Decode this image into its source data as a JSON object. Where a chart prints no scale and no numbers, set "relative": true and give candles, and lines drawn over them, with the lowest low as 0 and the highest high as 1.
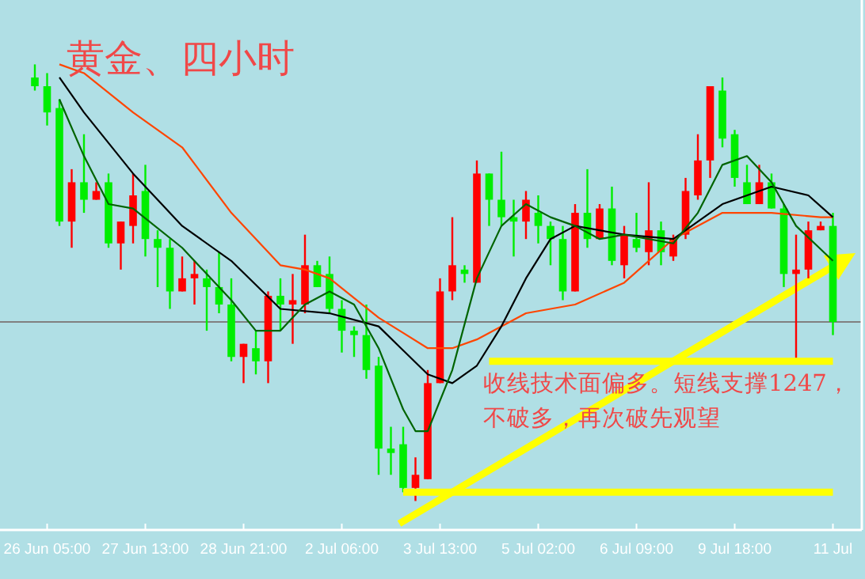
{
  "chart_data": {
    "type": "candlestick",
    "title": "黄金、四小时",
    "relative": true,
    "categories": [
      null,
      "26 Jun 05:00",
      null,
      null,
      null,
      null,
      null,
      null,
      null,
      "27 Jun 13:00",
      null,
      null,
      null,
      null,
      null,
      null,
      null,
      "28 Jun 21:00",
      null,
      null,
      null,
      null,
      null,
      null,
      null,
      "2 Jul 06:00",
      null,
      null,
      null,
      null,
      null,
      null,
      null,
      "3 Jul 13:00",
      null,
      null,
      null,
      null,
      null,
      null,
      null,
      "5 Jul 02:00",
      null,
      null,
      null,
      null,
      null,
      null,
      null,
      "6 Jul 09:00",
      null,
      null,
      null,
      null,
      null,
      null,
      null,
      "9 Jul 18:00",
      null,
      null,
      null,
      null,
      null,
      null,
      null,
      "11 Jul"
    ],
    "ohlc": [
      [
        0.97,
        1.0,
        0.94,
        0.95
      ],
      [
        0.95,
        0.98,
        0.86,
        0.89
      ],
      [
        0.9,
        0.92,
        0.63,
        0.64
      ],
      [
        0.64,
        0.76,
        0.58,
        0.73
      ],
      [
        0.73,
        0.84,
        0.66,
        0.69
      ],
      [
        0.69,
        0.73,
        0.69,
        0.71
      ],
      [
        0.73,
        0.75,
        0.58,
        0.59
      ],
      [
        0.59,
        0.64,
        0.53,
        0.64
      ],
      [
        0.63,
        0.75,
        0.59,
        0.7
      ],
      [
        0.71,
        0.77,
        0.56,
        0.6
      ],
      [
        0.6,
        0.62,
        0.49,
        0.58
      ],
      [
        0.58,
        0.6,
        0.44,
        0.48
      ],
      [
        0.48,
        0.56,
        0.48,
        0.51
      ],
      [
        0.51,
        0.55,
        0.45,
        0.52
      ],
      [
        0.51,
        0.53,
        0.39,
        0.49
      ],
      [
        0.49,
        0.57,
        0.43,
        0.45
      ],
      [
        0.45,
        0.51,
        0.32,
        0.33
      ],
      [
        0.33,
        0.36,
        0.27,
        0.36
      ],
      [
        0.35,
        0.39,
        0.29,
        0.32
      ],
      [
        0.32,
        0.48,
        0.27,
        0.47
      ],
      [
        0.47,
        0.51,
        0.39,
        0.45
      ],
      [
        0.45,
        0.52,
        0.36,
        0.46
      ],
      [
        0.45,
        0.61,
        0.43,
        0.54
      ],
      [
        0.54,
        0.55,
        0.49,
        0.49
      ],
      [
        0.52,
        0.56,
        0.43,
        0.44
      ],
      [
        0.44,
        0.46,
        0.34,
        0.39
      ],
      [
        0.39,
        0.4,
        0.33,
        0.38
      ],
      [
        0.38,
        0.45,
        0.28,
        0.3
      ],
      [
        0.31,
        0.33,
        0.06,
        0.12
      ],
      [
        0.12,
        0.17,
        0.06,
        0.11
      ],
      [
        0.13,
        0.17,
        0.02,
        0.03
      ],
      [
        0.03,
        0.1,
        0.0,
        0.06
      ],
      [
        0.05,
        0.3,
        0.05,
        0.27
      ],
      [
        0.27,
        0.51,
        0.27,
        0.48
      ],
      [
        0.48,
        0.65,
        0.46,
        0.54
      ],
      [
        0.53,
        0.54,
        0.5,
        0.52
      ],
      [
        0.5,
        0.78,
        0.5,
        0.75
      ],
      [
        0.75,
        0.75,
        0.63,
        0.69
      ],
      [
        0.69,
        0.8,
        0.63,
        0.65
      ],
      [
        0.65,
        0.69,
        0.56,
        0.64
      ],
      [
        0.64,
        0.71,
        0.6,
        0.69
      ],
      [
        0.66,
        0.7,
        0.59,
        0.63
      ],
      [
        0.63,
        0.64,
        0.54,
        0.6
      ],
      [
        0.6,
        0.63,
        0.46,
        0.48
      ],
      [
        0.48,
        0.68,
        0.48,
        0.66
      ],
      [
        0.66,
        0.76,
        0.58,
        0.6
      ],
      [
        0.6,
        0.68,
        0.6,
        0.67
      ],
      [
        0.67,
        0.72,
        0.54,
        0.55
      ],
      [
        0.54,
        0.63,
        0.51,
        0.61
      ],
      [
        0.6,
        0.66,
        0.57,
        0.58
      ],
      [
        0.57,
        0.73,
        0.54,
        0.62
      ],
      [
        0.62,
        0.64,
        0.54,
        0.57
      ],
      [
        0.56,
        0.61,
        0.55,
        0.6
      ],
      [
        0.61,
        0.74,
        0.6,
        0.71
      ],
      [
        0.7,
        0.84,
        0.69,
        0.78
      ],
      [
        0.78,
        0.95,
        0.74,
        0.95
      ],
      [
        0.94,
        0.97,
        0.81,
        0.83
      ],
      [
        0.84,
        0.85,
        0.72,
        0.74
      ],
      [
        0.73,
        0.77,
        0.68,
        0.68
      ],
      [
        0.68,
        0.77,
        0.68,
        0.73
      ],
      [
        0.73,
        0.75,
        0.67,
        0.67
      ],
      [
        0.67,
        0.68,
        0.49,
        0.52
      ],
      [
        0.52,
        0.61,
        0.32,
        0.53
      ],
      [
        0.53,
        0.64,
        0.51,
        0.62
      ],
      [
        0.62,
        0.64,
        0.62,
        0.63
      ],
      [
        0.63,
        0.66,
        0.38,
        0.41
      ]
    ],
    "colors": [
      "#00ee00",
      "#00ee00",
      "#00ee00",
      "#ff0000",
      "#00ee00",
      "#ff0000",
      "#00ee00",
      "#ff0000",
      "#ff0000",
      "#00ee00",
      "#00ee00",
      "#00ee00",
      "#ff0000",
      "#ff0000",
      "#00ee00",
      "#00ee00",
      "#00ee00",
      "#ff0000",
      "#00ee00",
      "#ff0000",
      "#00ee00",
      "#ff0000",
      "#ff0000",
      "#00ee00",
      "#00ee00",
      "#00ee00",
      "#00ee00",
      "#00ee00",
      "#00ee00",
      "#00ee00",
      "#00ee00",
      "#ff0000",
      "#ff0000",
      "#ff0000",
      "#ff0000",
      "#00ee00",
      "#ff0000",
      "#00ee00",
      "#00ee00",
      "#00ee00",
      "#ff0000",
      "#00ee00",
      "#00ee00",
      "#00ee00",
      "#ff0000",
      "#00ee00",
      "#ff0000",
      "#00ee00",
      "#ff0000",
      "#00ee00",
      "#ff0000",
      "#00ee00",
      "#ff0000",
      "#ff0000",
      "#ff0000",
      "#ff0000",
      "#00ee00",
      "#00ee00",
      "#00ee00",
      "#ff0000",
      "#00ee00",
      "#00ee00",
      "#ff0000",
      "#ff0000",
      "#ff0000",
      "#00ee00"
    ],
    "series": [
      {
        "type": "line",
        "color": "#ff4500",
        "values": [
          null,
          null,
          1.0,
          null,
          0.98,
          null,
          null,
          null,
          0.89,
          null,
          null,
          null,
          0.81,
          null,
          null,
          null,
          0.66,
          null,
          null,
          null,
          0.54,
          null,
          0.53,
          null,
          0.51,
          null,
          null,
          null,
          0.42,
          null,
          null,
          null,
          0.35,
          null,
          0.35,
          null,
          0.37,
          null,
          null,
          null,
          0.43,
          null,
          null,
          null,
          0.45,
          null,
          null,
          null,
          0.5,
          null,
          null,
          null,
          0.6,
          null,
          null,
          null,
          0.66,
          null,
          null,
          null,
          0.66,
          null,
          null,
          null,
          0.65,
          0.65
        ]
      },
      {
        "type": "line",
        "color": "#000000",
        "values": [
          null,
          null,
          0.97,
          null,
          0.89,
          null,
          null,
          null,
          0.75,
          null,
          null,
          null,
          0.63,
          null,
          null,
          null,
          0.55,
          null,
          null,
          null,
          0.44,
          null,
          null,
          null,
          0.43,
          null,
          null,
          null,
          0.4,
          null,
          null,
          null,
          0.29,
          null,
          0.27,
          null,
          0.31,
          null,
          0.4,
          null,
          0.51,
          null,
          0.6,
          null,
          0.63,
          null,
          null,
          null,
          0.61,
          null,
          null,
          null,
          0.6,
          null,
          0.64,
          null,
          0.68,
          null,
          null,
          null,
          0.72,
          null,
          null,
          0.7,
          null,
          0.65
        ]
      },
      {
        "type": "line",
        "color": "#006400",
        "values": [
          null,
          null,
          0.92,
          null,
          0.79,
          null,
          0.68,
          null,
          0.67,
          null,
          null,
          null,
          0.58,
          null,
          null,
          null,
          0.46,
          null,
          0.39,
          null,
          0.39,
          null,
          0.45,
          null,
          0.48,
          null,
          0.45,
          null,
          0.35,
          null,
          0.21,
          0.16,
          0.16,
          null,
          0.3,
          null,
          0.51,
          null,
          0.63,
          null,
          0.68,
          null,
          0.65,
          null,
          0.63,
          null,
          0.6,
          null,
          0.61,
          null,
          null,
          null,
          0.59,
          null,
          0.66,
          null,
          0.77,
          null,
          0.79,
          null,
          0.73,
          null,
          0.63,
          null,
          null,
          0.55
        ]
      },
      {
        "type": "line",
        "color": "#ffff00",
        "values": [
          null,
          null,
          null,
          null,
          null,
          null,
          null,
          null,
          null,
          null,
          null,
          null,
          null,
          null,
          null,
          null,
          null,
          null,
          null,
          null,
          null,
          null,
          null,
          null,
          null,
          null,
          null,
          null,
          null,
          null,
          null,
          null,
          null,
          null,
          null,
          null,
          null,
          0.32,
          null,
          null,
          null,
          null,
          null,
          null,
          null,
          null,
          null,
          null,
          null,
          null,
          null,
          null,
          null,
          null,
          null,
          null,
          null,
          null,
          null,
          null,
          null,
          null,
          null,
          null,
          null,
          0.32
        ]
      },
      {
        "type": "line",
        "color": "#ffff00",
        "values": [
          null,
          null,
          null,
          null,
          null,
          null,
          null,
          null,
          null,
          null,
          null,
          null,
          null,
          null,
          null,
          null,
          null,
          null,
          null,
          null,
          null,
          null,
          null,
          null,
          null,
          null,
          null,
          null,
          null,
          null,
          0.02,
          null,
          null,
          null,
          null,
          null,
          null,
          null,
          null,
          null,
          null,
          null,
          null,
          null,
          null,
          null,
          null,
          null,
          null,
          null,
          null,
          null,
          null,
          null,
          null,
          null,
          null,
          null,
          null,
          null,
          null,
          null,
          null,
          null,
          null,
          0.02
        ]
      }
    ],
    "ref_lines": [
      {
        "axis": "y",
        "value": 0.41,
        "color": "#808080"
      }
    ],
    "annotations": [
      "收线技术面偏多。短线支撑1247，",
      "不破多，再次破先观望"
    ]
  }
}
